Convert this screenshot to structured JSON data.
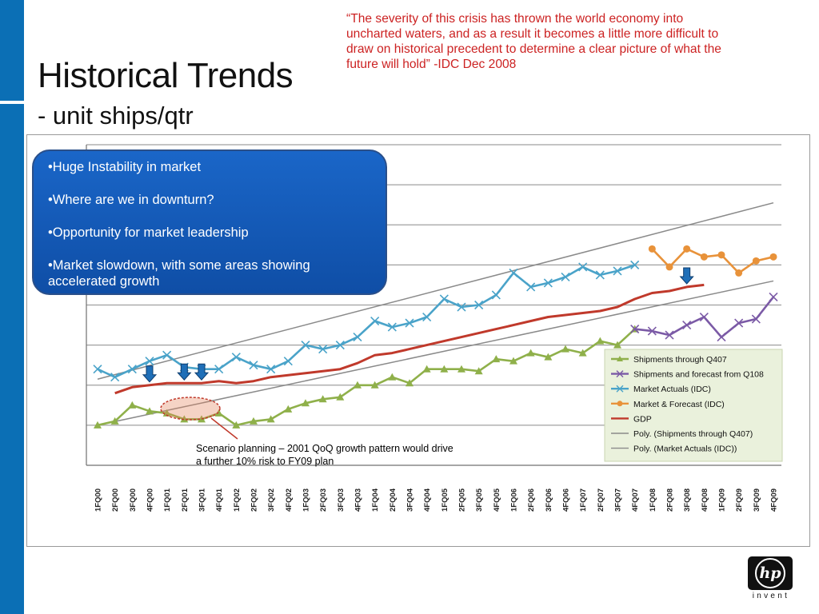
{
  "slide": {
    "title": "Historical Trends",
    "subtitle": "- unit ships/qtr",
    "quote": "“The severity of this crisis has thrown the world economy into uncharted waters, and as a result it becomes a little more difficult to draw on historical precedent to determine a clear picture of what the future will hold”  -IDC Dec 2008",
    "accent_color": "#0b6fb5",
    "quote_color": "#cc2222"
  },
  "callout": {
    "bullets": [
      "•Huge Instability in market",
      "•Where are we in downturn?",
      "•Opportunity for market leadership",
      "•Market slowdown, with some areas showing accelerated growth"
    ]
  },
  "scenario_note": "Scenario planning – 2001 QoQ growth pattern would drive a further 10% risk to FY09 plan",
  "logo": {
    "tagline": "invent",
    "icon": "hp-logo-icon"
  },
  "chart_data": {
    "type": "line",
    "categories": [
      "1FQ00",
      "2FQ00",
      "3FQ00",
      "4FQ00",
      "1FQ01",
      "2FQ01",
      "3FQ01",
      "4FQ01",
      "1FQ02",
      "2FQ02",
      "3FQ02",
      "4FQ02",
      "1FQ03",
      "2FQ03",
      "3FQ03",
      "4FQ03",
      "1FQ04",
      "2FQ04",
      "3FQ04",
      "4FQ04",
      "1FQ05",
      "2FQ05",
      "3FQ05",
      "4FQ05",
      "1FQ06",
      "2FQ06",
      "3FQ06",
      "4FQ06",
      "1FQ07",
      "2FQ07",
      "3FQ07",
      "4FQ07",
      "1FQ08",
      "2FQ08",
      "3FQ08",
      "4FQ08",
      "1FQ09",
      "2FQ09",
      "3FQ09",
      "4FQ09"
    ],
    "ylim": [
      0,
      8
    ],
    "grid": true,
    "legend_position": "bottom-right",
    "series": [
      {
        "name": "Shipments through  Q407",
        "color": "#8fb04a",
        "marker": "triangle",
        "values": [
          1.0,
          1.1,
          1.5,
          1.35,
          1.3,
          1.15,
          1.15,
          1.3,
          1.0,
          1.1,
          1.15,
          1.4,
          1.55,
          1.65,
          1.7,
          2.0,
          2.0,
          2.2,
          2.05,
          2.4,
          2.4,
          2.4,
          2.35,
          2.65,
          2.6,
          2.8,
          2.7,
          2.9,
          2.8,
          3.1,
          3.0,
          3.4,
          null,
          null,
          null,
          null,
          null,
          null,
          null,
          null
        ]
      },
      {
        "name": "Shipments and forecast from Q108",
        "color": "#7b5aa6",
        "marker": "x",
        "values": [
          null,
          null,
          null,
          null,
          null,
          null,
          null,
          null,
          null,
          null,
          null,
          null,
          null,
          null,
          null,
          null,
          null,
          null,
          null,
          null,
          null,
          null,
          null,
          null,
          null,
          null,
          null,
          null,
          null,
          null,
          null,
          3.4,
          3.35,
          3.25,
          3.5,
          3.7,
          3.2,
          3.55,
          3.65,
          4.2
        ]
      },
      {
        "name": "Market Actuals (IDC)",
        "color": "#4aa3c9",
        "marker": "x",
        "values": [
          2.4,
          2.2,
          2.4,
          2.6,
          2.75,
          2.45,
          2.4,
          2.4,
          2.7,
          2.5,
          2.4,
          2.6,
          3.0,
          2.9,
          3.0,
          3.2,
          3.6,
          3.45,
          3.55,
          3.7,
          4.15,
          3.95,
          4.0,
          4.25,
          4.8,
          4.45,
          4.55,
          4.7,
          4.95,
          4.75,
          4.85,
          5.0,
          null,
          null,
          null,
          null,
          null,
          null,
          null,
          null
        ]
      },
      {
        "name": "Market & Forecast (IDC)",
        "color": "#e8923a",
        "marker": "circle",
        "values": [
          null,
          null,
          null,
          null,
          null,
          null,
          null,
          null,
          null,
          null,
          null,
          null,
          null,
          null,
          null,
          null,
          null,
          null,
          null,
          null,
          null,
          null,
          null,
          null,
          null,
          null,
          null,
          null,
          null,
          null,
          null,
          null,
          5.4,
          4.95,
          5.4,
          5.2,
          5.25,
          4.8,
          5.1,
          5.2
        ]
      },
      {
        "name": "GDP",
        "color": "#c0392b",
        "marker": "none",
        "values": [
          null,
          1.8,
          1.95,
          2.0,
          2.05,
          2.05,
          2.05,
          2.1,
          2.05,
          2.1,
          2.2,
          2.25,
          2.3,
          2.35,
          2.4,
          2.55,
          2.75,
          2.8,
          2.9,
          3.0,
          3.1,
          3.2,
          3.3,
          3.4,
          3.5,
          3.6,
          3.7,
          3.75,
          3.8,
          3.85,
          3.95,
          4.15,
          4.3,
          4.35,
          4.45,
          4.5,
          null,
          null,
          null,
          null
        ]
      },
      {
        "name": "Poly. (Shipments through Q407)",
        "color": "#8a8a8a",
        "marker": "none",
        "trend": [
          1.0,
          4.6
        ]
      },
      {
        "name": "Poly. (Market Actuals (IDC))",
        "color": "#8a8a8a",
        "marker": "none",
        "trend": [
          2.15,
          6.55
        ]
      }
    ],
    "downturn_markers": [
      "4FQ00",
      "2FQ01",
      "3FQ01",
      "3FQ08"
    ]
  }
}
